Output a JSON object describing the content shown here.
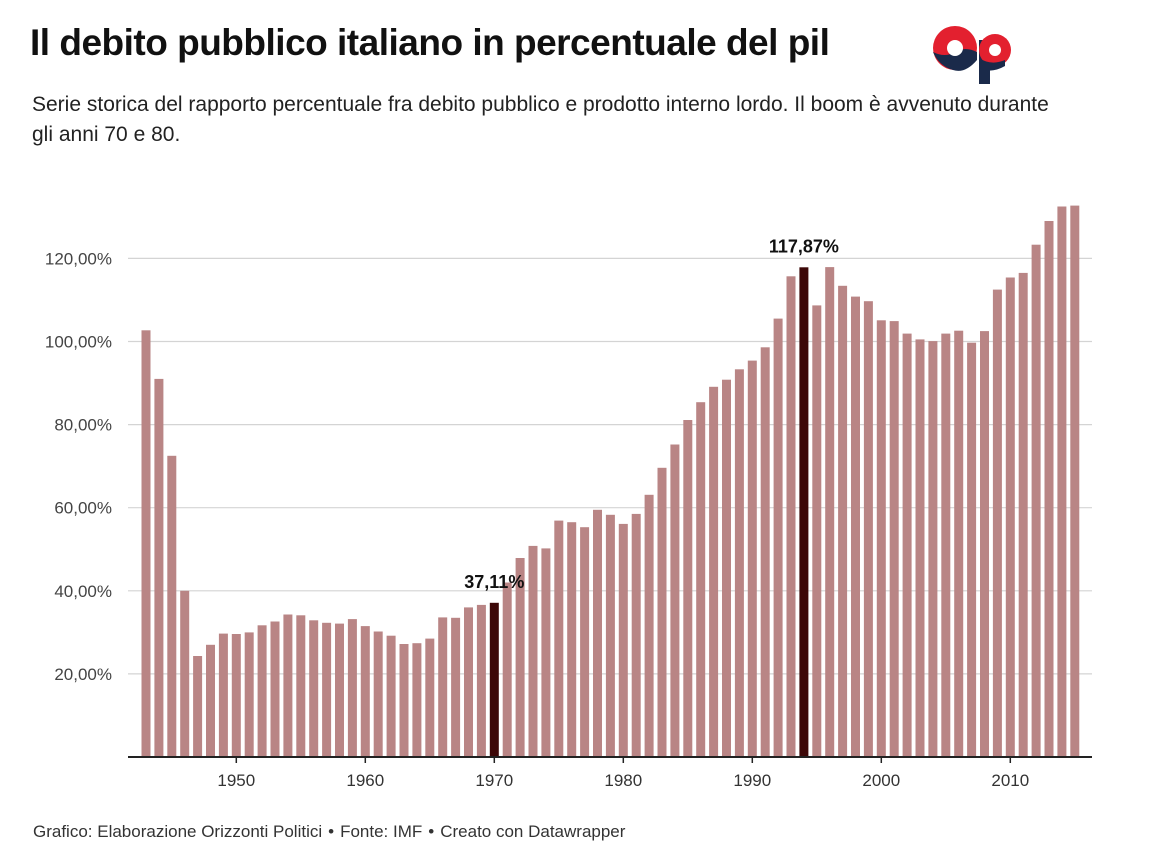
{
  "header": {
    "title": "Il debito pubblico italiano in percentuale del pil",
    "subtitle": "Serie storica del rapporto percentuale fra debito pubblico e prodotto interno lordo. Il boom è avvenuto durante gli anni 70 e 80."
  },
  "logo": {
    "text": "OP"
  },
  "footer": {
    "credit": "Grafico: Elaborazione Orizzonti Politici",
    "source": "Fonte: IMF",
    "tool": "Creato con Datawrapper",
    "separator": "•"
  },
  "colors": {
    "bar": "#b98585",
    "highlight": "#3d0808",
    "grid": "#d4d4d4",
    "axis": "#222222",
    "logo_red": "#e3202f",
    "logo_navy": "#1a2a4a"
  },
  "chart_data": {
    "type": "bar",
    "title": "",
    "xlabel": "",
    "ylabel": "",
    "ylim": [
      0,
      130
    ],
    "yticks": [
      20,
      40,
      60,
      80,
      100,
      120
    ],
    "ytick_labels": [
      "20,00%",
      "40,00%",
      "60,00%",
      "80,00%",
      "100,00%",
      "120,00%"
    ],
    "xticks": [
      1950,
      1960,
      1970,
      1980,
      1990,
      2000,
      2010
    ],
    "xtick_labels": [
      "1950",
      "1960",
      "1970",
      "1980",
      "1990",
      "2000",
      "2010"
    ],
    "grid": true,
    "categories": [
      1943,
      1944,
      1945,
      1946,
      1947,
      1948,
      1949,
      1950,
      1951,
      1952,
      1953,
      1954,
      1955,
      1956,
      1957,
      1958,
      1959,
      1960,
      1961,
      1962,
      1963,
      1964,
      1965,
      1966,
      1967,
      1968,
      1969,
      1970,
      1971,
      1972,
      1973,
      1974,
      1975,
      1976,
      1977,
      1978,
      1979,
      1980,
      1981,
      1982,
      1983,
      1984,
      1985,
      1986,
      1987,
      1988,
      1989,
      1990,
      1991,
      1992,
      1993,
      1994,
      1995,
      1996,
      1997,
      1998,
      1999,
      2000,
      2001,
      2002,
      2003,
      2004,
      2005,
      2006,
      2007,
      2008,
      2009,
      2010,
      2011,
      2012,
      2013,
      2014,
      2015
    ],
    "values": [
      102.7,
      91.0,
      72.5,
      40.0,
      24.3,
      27.0,
      29.7,
      29.6,
      30.0,
      31.7,
      32.6,
      34.3,
      34.1,
      32.9,
      32.3,
      32.1,
      33.2,
      31.5,
      30.2,
      29.2,
      27.2,
      27.4,
      28.5,
      33.6,
      33.5,
      36.0,
      36.6,
      37.11,
      42.0,
      47.9,
      50.8,
      50.2,
      56.9,
      56.5,
      55.3,
      59.5,
      58.3,
      56.1,
      58.5,
      63.1,
      69.6,
      75.2,
      81.1,
      85.4,
      89.1,
      90.8,
      93.3,
      95.4,
      98.6,
      105.5,
      115.7,
      117.87,
      108.7,
      117.9,
      113.4,
      110.8,
      109.7,
      105.1,
      104.9,
      101.9,
      100.5,
      100.1,
      101.9,
      102.6,
      99.7,
      102.5,
      112.5,
      115.4,
      116.5,
      123.3,
      129.0,
      132.5,
      132.7
    ],
    "highlights": [
      {
        "year": 1970,
        "value": 37.11,
        "label": "37,11%"
      },
      {
        "year": 1994,
        "value": 117.87,
        "label": "117,87%"
      }
    ]
  }
}
